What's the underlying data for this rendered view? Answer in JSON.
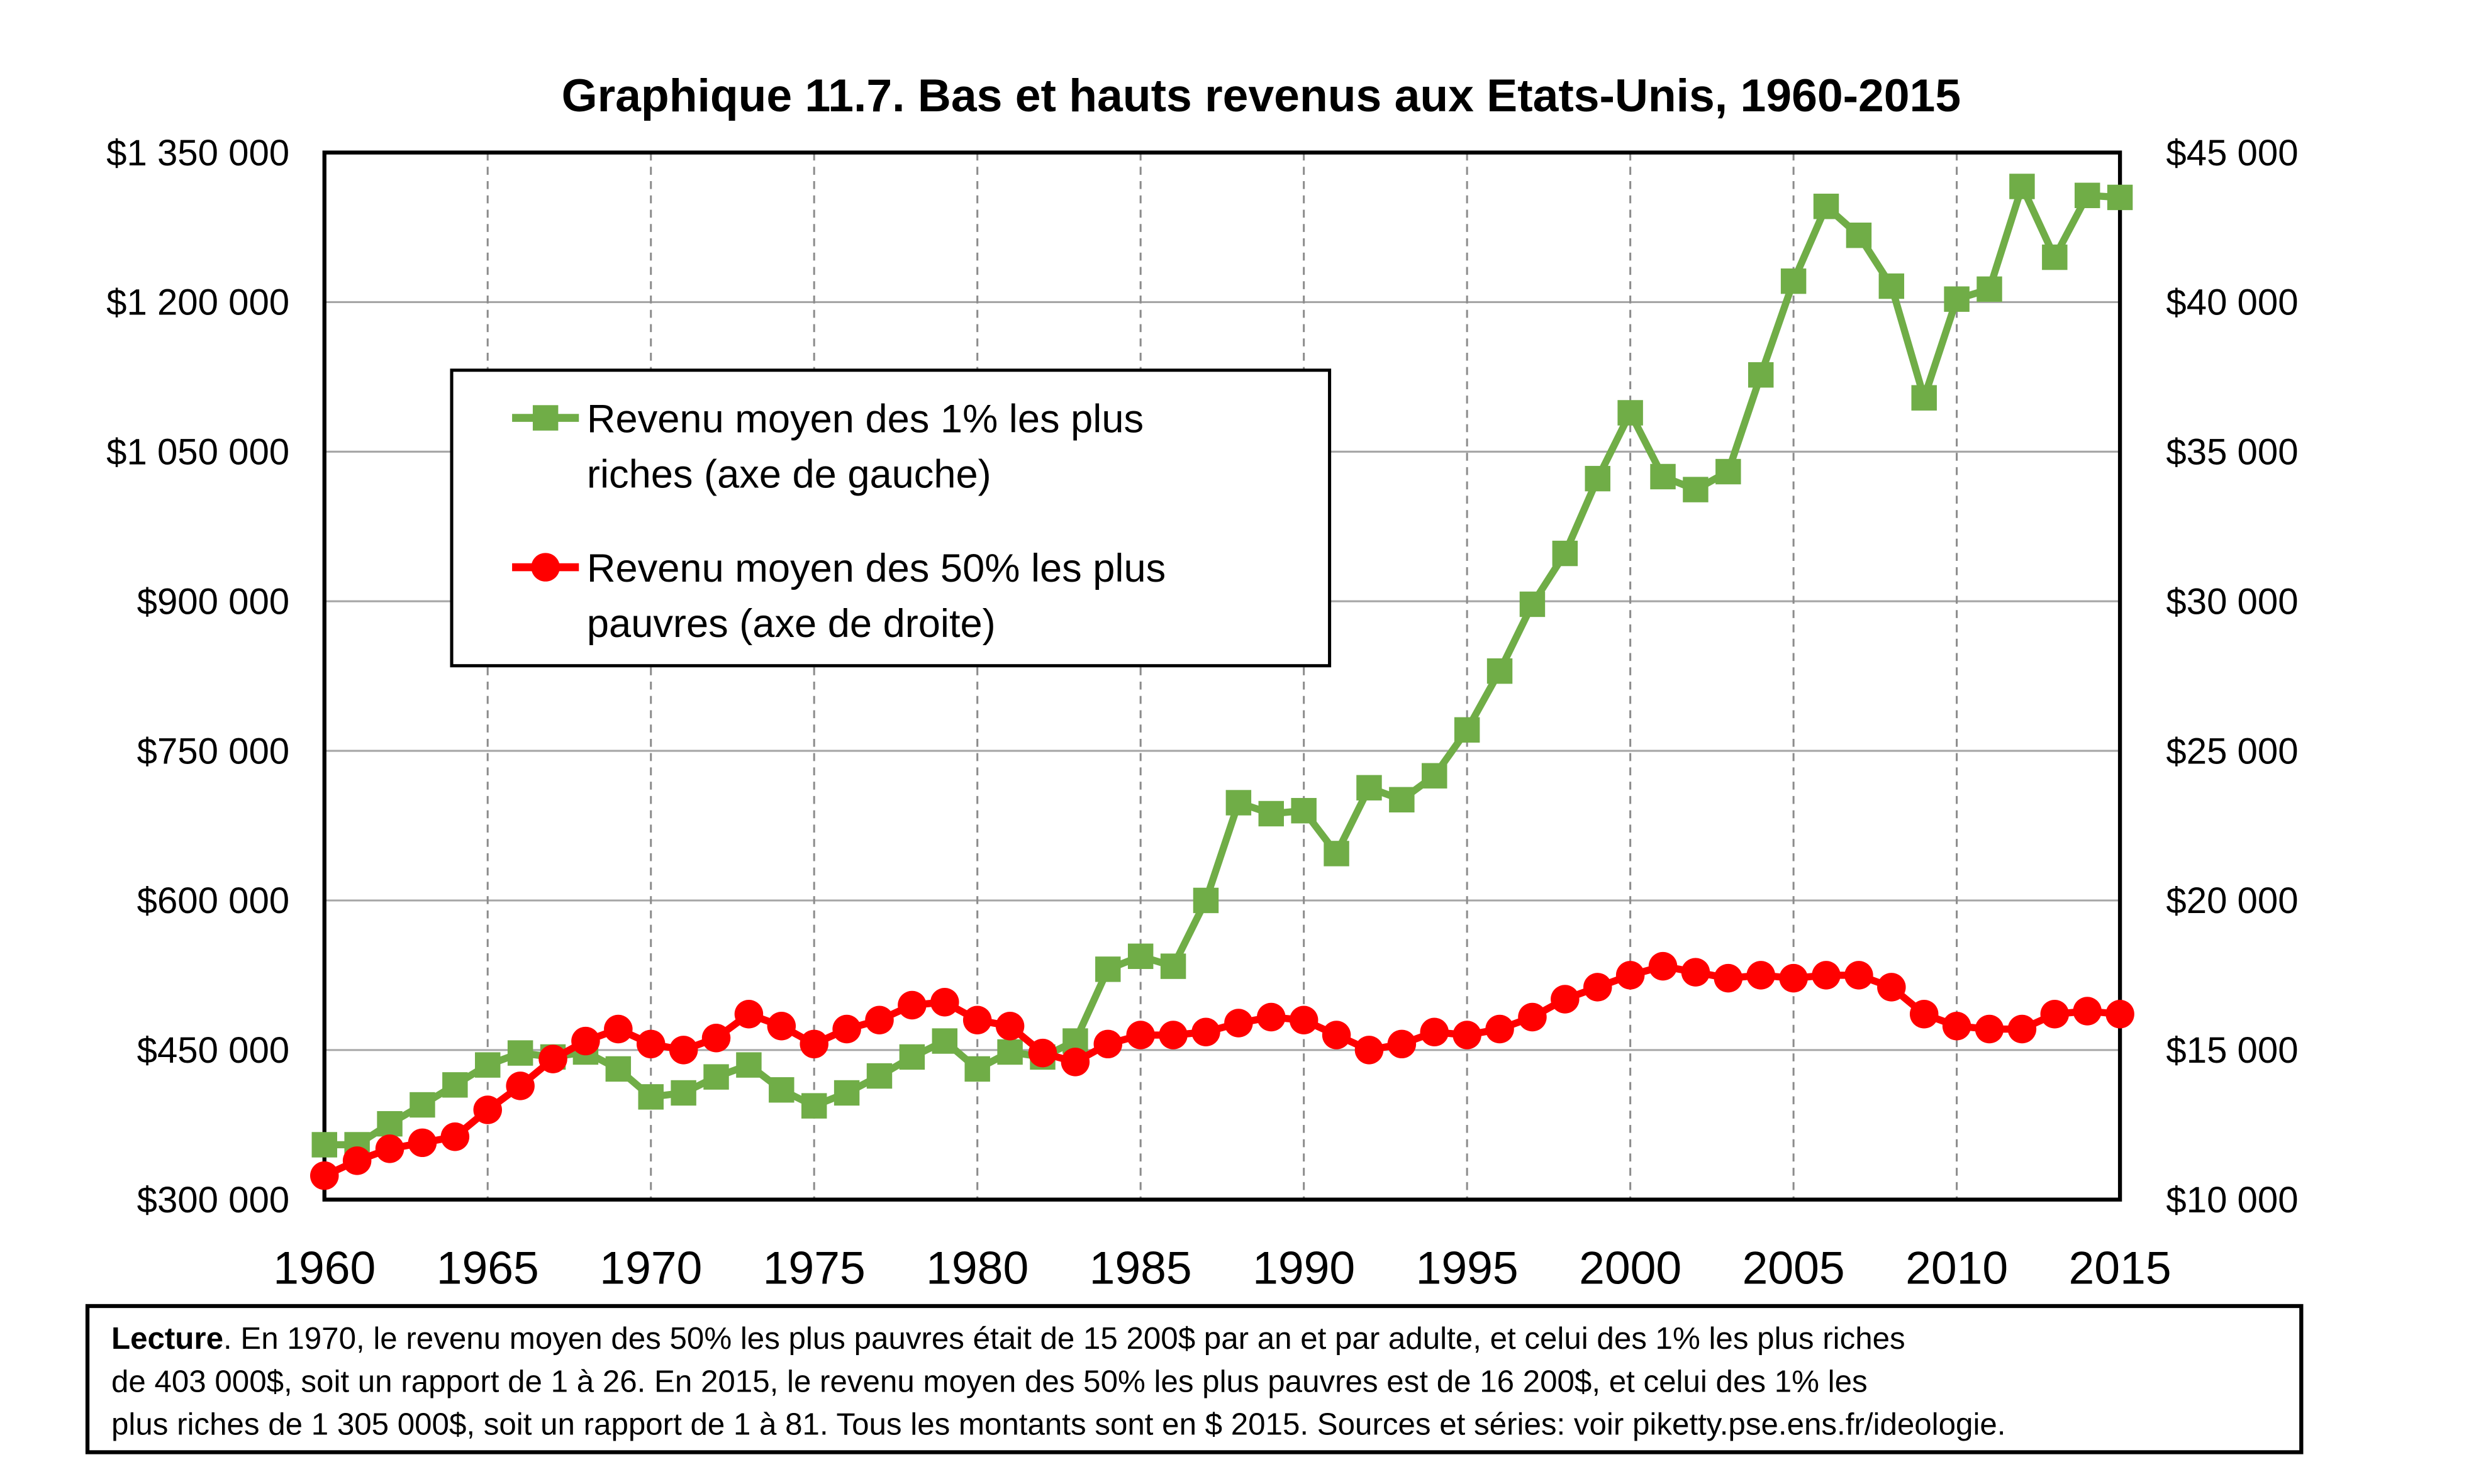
{
  "chart_data": {
    "type": "line",
    "title": "Graphique 11.7. Bas et hauts revenus aux Etats-Unis, 1960-2015",
    "xlabel": "",
    "ylabel_left": "",
    "ylabel_right": "",
    "xlim": [
      1960,
      2015
    ],
    "ylim_left": [
      300000,
      1350000
    ],
    "ylim_right": [
      10000,
      45000
    ],
    "grid": true,
    "legend_position": "upper-left",
    "x_ticks": [
      "1960",
      "1965",
      "1970",
      "1975",
      "1980",
      "1985",
      "1990",
      "1995",
      "2000",
      "2005",
      "2010",
      "2015"
    ],
    "y_ticks_left": [
      "$300 000",
      "$450 000",
      "$600 000",
      "$750 000",
      "$900 000",
      "$1 050 000",
      "$1 200 000",
      "$1 350 000"
    ],
    "y_ticks_right": [
      "$10 000",
      "$15 000",
      "$20 000",
      "$25 000",
      "$30 000",
      "$35 000",
      "$40 000",
      "$45 000"
    ],
    "x": [
      1960,
      1961,
      1962,
      1963,
      1964,
      1965,
      1966,
      1967,
      1968,
      1969,
      1970,
      1971,
      1972,
      1973,
      1974,
      1975,
      1976,
      1977,
      1978,
      1979,
      1980,
      1981,
      1982,
      1983,
      1984,
      1985,
      1986,
      1987,
      1988,
      1989,
      1990,
      1991,
      1992,
      1993,
      1994,
      1995,
      1996,
      1997,
      1998,
      1999,
      2000,
      2001,
      2002,
      2003,
      2004,
      2005,
      2006,
      2007,
      2008,
      2009,
      2010,
      2011,
      2012,
      2013,
      2014,
      2015
    ],
    "series": [
      {
        "name": "Revenu moyen des 1% les plus riches (axe de gauche)",
        "legend_lines": [
          "Revenu moyen des 1% les plus",
          "riches (axe de gauche)"
        ],
        "axis": "left",
        "color": "#70ad47",
        "marker": "square",
        "values": [
          355000,
          355000,
          376000,
          395000,
          415000,
          435000,
          447000,
          443000,
          448000,
          431000,
          403000,
          407000,
          423000,
          435000,
          410000,
          394000,
          407000,
          424000,
          443000,
          459000,
          431000,
          448000,
          443000,
          459000,
          531000,
          544000,
          534000,
          600000,
          698000,
          687000,
          690000,
          647000,
          713000,
          701000,
          725000,
          771000,
          830000,
          897000,
          948000,
          1023000,
          1089000,
          1025000,
          1012000,
          1030000,
          1127000,
          1221000,
          1296000,
          1267000,
          1216000,
          1104000,
          1203000,
          1213000,
          1316000,
          1245000,
          1307000,
          1305000
        ]
      },
      {
        "name": "Revenu moyen des 50% les plus pauvres (axe de droite)",
        "legend_lines": [
          "Revenu moyen des 50% les plus",
          "pauvres (axe de droite)"
        ],
        "axis": "right",
        "color": "#ff0000",
        "marker": "circle",
        "values": [
          10800,
          11300,
          11700,
          11900,
          12100,
          13000,
          13800,
          14700,
          15300,
          15700,
          15200,
          15000,
          15400,
          16200,
          15800,
          15200,
          15700,
          16000,
          16500,
          16600,
          16000,
          15800,
          14900,
          14600,
          15200,
          15500,
          15500,
          15600,
          15900,
          16100,
          16000,
          15500,
          15000,
          15200,
          15600,
          15500,
          15700,
          16100,
          16700,
          17100,
          17500,
          17800,
          17600,
          17400,
          17500,
          17400,
          17500,
          17500,
          17100,
          16200,
          15800,
          15700,
          15700,
          16200,
          16300,
          16200
        ]
      }
    ]
  },
  "caption": {
    "label": "Lecture",
    "lines": [
      ". En 1970, le revenu moyen des 50% les plus pauvres était de 15 200$ par an et par adulte, et celui des 1% les plus riches",
      "de 403 000$, soit un rapport de 1 à 26. En 2015, le revenu moyen des 50% les plus pauvres est de 16 200$, et celui des 1% les",
      "plus riches de 1 305 000$, soit un rapport de 1 à 81. Tous les montants sont en $ 2015. Sources et séries: voir piketty.pse.ens.fr/ideologie."
    ]
  }
}
